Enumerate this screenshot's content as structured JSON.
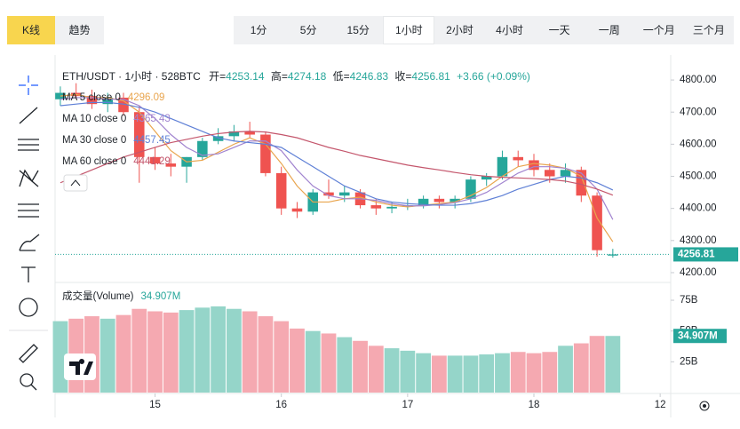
{
  "tabs": [
    "K线",
    "趋势"
  ],
  "intervals": [
    "1分",
    "5分",
    "15分",
    "1小时",
    "2小时",
    "4小时",
    "一天",
    "一周",
    "一个月",
    "三个月"
  ],
  "active_interval": 3,
  "chart_data": {
    "type": "candlestick",
    "title": "ETH/USDT · 1小时 · 528BTC",
    "ohlc_labels": [
      "开=",
      "高=",
      "低=",
      "收="
    ],
    "change": "+3.66 (+0.09%)",
    "up_color": "#26a69a",
    "down_color": "#ef5350",
    "volume_up_color": "#95d5c9",
    "volume_down_color": "#f5a9b1",
    "x": [
      -18,
      -15,
      -12,
      -9,
      -6,
      -3,
      0,
      3,
      6,
      9,
      12,
      15,
      18,
      21,
      24,
      27,
      30,
      33,
      36,
      39,
      42,
      45,
      48,
      51,
      54,
      57,
      60,
      63,
      66,
      69,
      72,
      75,
      78,
      81,
      84,
      87
    ],
    "open": [
      4740,
      4760,
      4750,
      4725,
      4745,
      4700,
      4560,
      4540,
      4530,
      4560,
      4610,
      4625,
      4640,
      4630,
      4510,
      4400,
      4390,
      4450,
      4440,
      4450,
      4410,
      4400,
      4405,
      4410,
      4430,
      4420,
      4430,
      4490,
      4500,
      4560,
      4550,
      4520,
      4500,
      4520,
      4440,
      4253.14
    ],
    "high": [
      4780,
      4790,
      4770,
      4760,
      4760,
      4720,
      4590,
      4570,
      4560,
      4620,
      4650,
      4660,
      4670,
      4640,
      4530,
      4420,
      4460,
      4490,
      4470,
      4460,
      4430,
      4420,
      4430,
      4440,
      4440,
      4440,
      4500,
      4510,
      4580,
      4580,
      4570,
      4540,
      4540,
      4530,
      4450,
      4274.18
    ],
    "low": [
      4720,
      4740,
      4710,
      4700,
      4690,
      4480,
      4520,
      4500,
      4480,
      4550,
      4600,
      4610,
      4620,
      4500,
      4380,
      4370,
      4380,
      4430,
      4420,
      4400,
      4380,
      4385,
      4395,
      4400,
      4400,
      4400,
      4420,
      4470,
      4490,
      4530,
      4500,
      4480,
      4480,
      4420,
      4250,
      4246.83
    ],
    "close": [
      4760,
      4750,
      4725,
      4745,
      4700,
      4560,
      4540,
      4530,
      4560,
      4610,
      4625,
      4640,
      4630,
      4510,
      4400,
      4390,
      4450,
      4440,
      4450,
      4410,
      4400,
      4405,
      4410,
      4430,
      4420,
      4430,
      4490,
      4500,
      4560,
      4550,
      4520,
      4500,
      4520,
      4440,
      4270,
      4256.81
    ],
    "volume": [
      58,
      60,
      62,
      60,
      63,
      68,
      66,
      65,
      67,
      69,
      70,
      68,
      66,
      62,
      58,
      52,
      50,
      48,
      45,
      42,
      38,
      36,
      34,
      32,
      30,
      30,
      30,
      31,
      32,
      33,
      32,
      33,
      38,
      40,
      46,
      46
    ],
    "volume_title": "成交量(Volume)",
    "volume_label": "34.907M",
    "ma": [
      {
        "name": "MA 5 close 0",
        "color": "#e9a54e",
        "values": [
          4750,
          4755,
          4745,
          4745,
          4735,
          4700,
          4640,
          4580,
          4545,
          4550,
          4575,
          4600,
          4620,
          4600,
          4540,
          4470,
          4420,
          4420,
          4430,
          4435,
          4420,
          4410,
          4405,
          4410,
          4415,
          4420,
          4440,
          4465,
          4500,
          4530,
          4540,
          4535,
          4525,
          4500,
          4370,
          4296.09
        ]
      },
      {
        "name": "MA 10 close 0",
        "color": "#a184cf",
        "values": [
          4740,
          4745,
          4745,
          4740,
          4740,
          4720,
          4680,
          4630,
          4590,
          4565,
          4570,
          4590,
          4610,
          4610,
          4580,
          4520,
          4470,
          4440,
          4430,
          4430,
          4425,
          4415,
          4408,
          4408,
          4412,
          4418,
          4430,
          4450,
          4480,
          4510,
          4530,
          4530,
          4525,
          4510,
          4460,
          4365.43
        ]
      },
      {
        "name": "MA 30 close 0",
        "color": "#5f80d6",
        "values": [
          4720,
          4725,
          4730,
          4730,
          4725,
          4715,
          4700,
          4680,
          4660,
          4640,
          4620,
          4610,
          4605,
          4600,
          4590,
          4560,
          4530,
          4500,
          4470,
          4450,
          4430,
          4420,
          4415,
          4412,
          4410,
          4410,
          4415,
          4425,
          4440,
          4460,
          4475,
          4490,
          4500,
          4495,
          4480,
          4457.45
        ]
      },
      {
        "name": "MA 60 close 0",
        "color": "#c4566c",
        "values": [
          4480,
          4500,
          4520,
          4540,
          4560,
          4575,
          4590,
          4605,
          4615,
          4625,
          4633,
          4638,
          4640,
          4638,
          4630,
          4620,
          4605,
          4590,
          4578,
          4565,
          4555,
          4545,
          4535,
          4527,
          4520,
          4512,
          4505,
          4500,
          4497,
          4495,
          4493,
          4490,
          4485,
          4475,
          4460,
          4441.29
        ]
      }
    ],
    "xlim": [
      -19,
      98
    ],
    "xticks": [
      {
        "value": 0,
        "label": "15"
      },
      {
        "value": 24,
        "label": "16"
      },
      {
        "value": 48,
        "label": "17"
      },
      {
        "value": 72,
        "label": "18"
      },
      {
        "value": 96,
        "label": "12"
      }
    ],
    "ylim": [
      4175,
      4850
    ],
    "yticks": [
      {
        "value": 4200,
        "label": "4200.00"
      },
      {
        "value": 4300,
        "label": "4300.00"
      },
      {
        "value": 4400,
        "label": "4400.00"
      },
      {
        "value": 4500,
        "label": "4500.00"
      },
      {
        "value": 4600,
        "label": "4600.00"
      },
      {
        "value": 4700,
        "label": "4700.00"
      },
      {
        "value": 4800,
        "label": "4800.00"
      }
    ],
    "volume_ylim": [
      0,
      88
    ],
    "volume_yticks": [
      {
        "value": 25,
        "label": "25B"
      },
      {
        "value": 50,
        "label": "50B"
      },
      {
        "value": 75,
        "label": "75B"
      }
    ]
  }
}
